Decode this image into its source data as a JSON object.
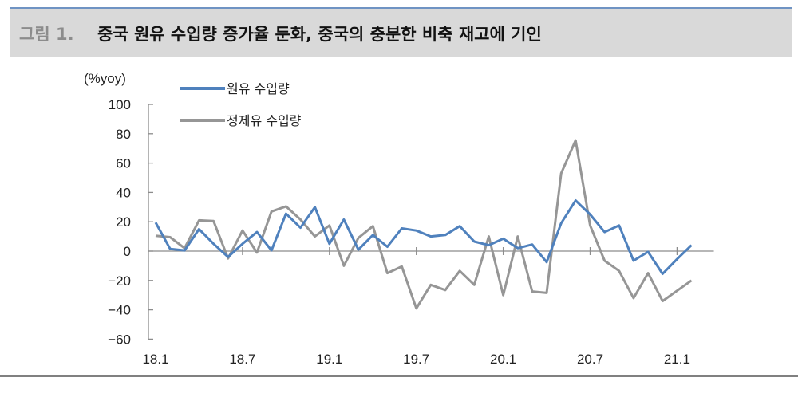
{
  "header": {
    "prefix": "그림 1.",
    "title": "중국 원유 수입량 증가율 둔화, 중국의 충분한 비축 재고에 기인"
  },
  "chart_data": {
    "type": "line",
    "title": "중국 원유 수입량 증가율 둔화, 중국의 충분한 비축 재고에 기인",
    "ylabel": "(%yoy)",
    "xlabel": "",
    "ylim": [
      -60,
      100
    ],
    "yticks": [
      100,
      80,
      60,
      40,
      20,
      0,
      -20,
      -40,
      -60
    ],
    "ytick_labels": [
      "100",
      "80",
      "60",
      "40",
      "20",
      "0",
      "−20",
      "−40",
      "−60"
    ],
    "xtick_labels": [
      "18.1",
      "18.7",
      "19.1",
      "19.7",
      "20.1",
      "20.7",
      "21.1"
    ],
    "x": [
      "18.1",
      "18.2",
      "18.3",
      "18.4",
      "18.5",
      "18.6",
      "18.7",
      "18.8",
      "18.9",
      "18.10",
      "18.11",
      "18.12",
      "19.1",
      "19.2",
      "19.3",
      "19.4",
      "19.5",
      "19.6",
      "19.7",
      "19.8",
      "19.9",
      "19.10",
      "19.11",
      "19.12",
      "20.1",
      "20.2",
      "20.3",
      "20.4",
      "20.5",
      "20.6",
      "20.7",
      "20.8",
      "20.9",
      "20.10",
      "20.11",
      "20.12",
      "21.1",
      "21.2"
    ],
    "series": [
      {
        "name": "원유 수입량",
        "color": "#4f81bd",
        "values": [
          19.5,
          1.5,
          0.5,
          15,
          5,
          -4,
          5,
          13,
          0.5,
          25.5,
          16,
          30,
          5,
          21.5,
          1,
          11,
          3,
          15.5,
          14,
          10,
          11,
          17,
          6.5,
          4,
          8.5,
          2,
          4.5,
          -7.5,
          19,
          34.5,
          25,
          13,
          17.5,
          -6.5,
          -0.5,
          -15.5,
          -5.5,
          4
        ]
      },
      {
        "name": "정제유 수입량",
        "color": "#969696",
        "values": [
          10.5,
          9.5,
          2,
          21,
          20.5,
          -5,
          14,
          -1,
          27,
          30.5,
          21.5,
          10,
          17.5,
          -10,
          9,
          17,
          -15,
          -10.5,
          -39,
          -23,
          -26.5,
          -13.5,
          -23,
          10,
          -30,
          10,
          -27.5,
          -28.5,
          53,
          75.5,
          17.5,
          -6.5,
          -13.5,
          -32,
          -15,
          -34,
          -27,
          -20
        ]
      }
    ],
    "legend_position": "top-left",
    "grid": false
  },
  "legend": {
    "items": [
      {
        "label": "원유 수입량",
        "color": "#4f81bd"
      },
      {
        "label": "정제유 수입량",
        "color": "#969696"
      }
    ]
  },
  "axis": {
    "unit_label": "(%yoy)"
  }
}
